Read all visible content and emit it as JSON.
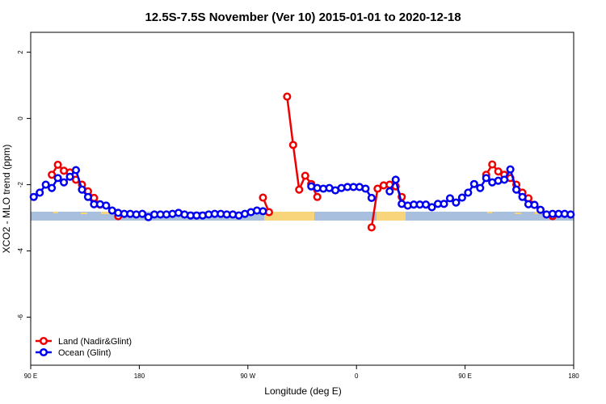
{
  "chart_data": {
    "type": "line",
    "title": "12.5S-7.5S November (Ver 10)   2015-01-01 to 2020-12-18",
    "x_label": "Longitude (deg E)",
    "y_label": "XCO2 - MLO trend (ppm)",
    "xlim": [
      90,
      540
    ],
    "xticks": [
      {
        "value": 90,
        "label": "90 E"
      },
      180,
      {
        "value": 270,
        "label": "90 W"
      },
      {
        "value": 360,
        "label": "0"
      },
      {
        "value": 450,
        "label": "90 E"
      },
      {
        "value": 540,
        "label": "180"
      }
    ],
    "ylim": [
      -7.45,
      2.6
    ],
    "yticks": [
      -6,
      -4,
      -2,
      0,
      2
    ],
    "legend": "bottomleft",
    "series": [
      {
        "name": "Land (Nadir&Glint)",
        "color": "#ee0000",
        "x": [
          107.5,
          112.5,
          117.5,
          122.5,
          127.5,
          132.5,
          137.5,
          142.5,
          147.5,
          152.5,
          162.5,
          172.5,
          282.5,
          287.5,
          292.5,
          302.5,
          307.5,
          312.5,
          317.5,
          322.5,
          327.5,
          332.5,
          372.5,
          377.5,
          382.5,
          387.5,
          392.5,
          397.5,
          402.5,
          467.5,
          472.5,
          477.5,
          482.5,
          487.5,
          492.5,
          497.5,
          502.5,
          507.5,
          512.5,
          522.5
        ],
        "values": [
          -1.7,
          -1.4,
          -1.58,
          -1.63,
          -1.85,
          -2.0,
          -2.2,
          -2.4,
          -2.6,
          null,
          -2.95,
          null,
          -2.39,
          -2.83,
          null,
          0.66,
          -0.8,
          -2.15,
          -1.73,
          -1.98,
          -2.37,
          null,
          -3.29,
          -2.12,
          -2.02,
          -2.0,
          -2.05,
          -2.37,
          null,
          -1.7,
          -1.39,
          -1.6,
          -1.7,
          -1.8,
          -2.0,
          -2.24,
          -2.41,
          -2.61,
          null,
          -2.95
        ]
      },
      {
        "name": "Ocean (Glint)",
        "color": "#0000ee",
        "x": [
          92.5,
          97.5,
          102.5,
          107.5,
          112.5,
          117.5,
          122.5,
          127.5,
          132.5,
          137.5,
          142.5,
          147.5,
          152.5,
          157.5,
          162.5,
          167.5,
          172.5,
          177.5,
          182.5,
          187.5,
          192.5,
          197.5,
          202.5,
          207.5,
          212.5,
          217.5,
          222.5,
          227.5,
          232.5,
          237.5,
          242.5,
          247.5,
          252.5,
          257.5,
          262.5,
          267.5,
          272.5,
          277.5,
          282.5,
          287.5,
          322.5,
          327.5,
          332.5,
          337.5,
          342.5,
          347.5,
          352.5,
          357.5,
          362.5,
          367.5,
          372.5,
          377.5,
          387.5,
          392.5,
          397.5,
          402.5,
          407.5,
          412.5,
          417.5,
          422.5,
          427.5,
          432.5,
          437.5,
          442.5,
          447.5,
          452.5,
          457.5,
          462.5,
          467.5,
          472.5,
          477.5,
          482.5,
          487.5,
          492.5,
          497.5,
          502.5,
          507.5,
          512.5,
          517.5,
          522.5,
          527.5,
          532.5,
          537.5
        ],
        "values": [
          -2.37,
          -2.24,
          -2.0,
          -2.1,
          -1.8,
          -1.93,
          -1.76,
          -1.56,
          -2.15,
          -2.37,
          -2.59,
          -2.59,
          -2.63,
          -2.78,
          -2.85,
          -2.88,
          -2.88,
          -2.9,
          -2.88,
          -2.98,
          -2.9,
          -2.9,
          -2.9,
          -2.88,
          -2.85,
          -2.9,
          -2.93,
          -2.93,
          -2.93,
          -2.9,
          -2.88,
          -2.88,
          -2.9,
          -2.9,
          -2.93,
          -2.88,
          -2.83,
          -2.78,
          -2.8,
          null,
          -2.05,
          -2.1,
          -2.12,
          -2.1,
          -2.17,
          -2.1,
          -2.07,
          -2.07,
          -2.07,
          -2.12,
          -2.4,
          null,
          -2.2,
          -1.85,
          -2.58,
          -2.63,
          -2.6,
          -2.6,
          -2.6,
          -2.68,
          -2.58,
          -2.58,
          -2.41,
          -2.54,
          -2.39,
          -2.24,
          -1.98,
          -2.1,
          -1.8,
          -1.93,
          -1.88,
          -1.85,
          -1.54,
          -2.15,
          -2.37,
          -2.59,
          -2.61,
          -2.76,
          -2.9,
          -2.88,
          -2.88,
          -2.88,
          -2.9
        ]
      }
    ]
  }
}
